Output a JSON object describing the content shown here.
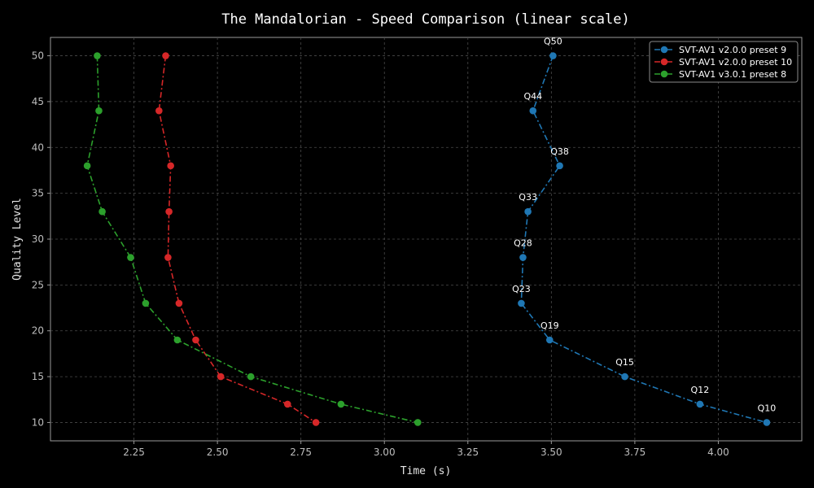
{
  "chart_data": {
    "type": "line",
    "title": "The Mandalorian - Speed Comparison (linear scale)",
    "xlabel": "Time (s)",
    "ylabel": "Quality Level",
    "xlim": [
      2.0,
      4.25
    ],
    "ylim": [
      8,
      52
    ],
    "xticks": [
      "2.25",
      "2.50",
      "2.75",
      "3.00",
      "3.25",
      "3.50",
      "3.75",
      "4.00"
    ],
    "yticks": [
      "10",
      "15",
      "20",
      "25",
      "30",
      "35",
      "40",
      "45",
      "50"
    ],
    "grid": true,
    "legend_position": "top-right",
    "series": [
      {
        "name": "SVT-AV1 v2.0.0 preset 9",
        "color": "#1f77b4",
        "points": [
          {
            "x": 3.505,
            "y": 50,
            "label": "Q50"
          },
          {
            "x": 3.445,
            "y": 44,
            "label": "Q44"
          },
          {
            "x": 3.525,
            "y": 38,
            "label": "Q38"
          },
          {
            "x": 3.43,
            "y": 33,
            "label": "Q33"
          },
          {
            "x": 3.415,
            "y": 28,
            "label": "Q28"
          },
          {
            "x": 3.41,
            "y": 23,
            "label": "Q23"
          },
          {
            "x": 3.495,
            "y": 19,
            "label": "Q19"
          },
          {
            "x": 3.72,
            "y": 15,
            "label": "Q15"
          },
          {
            "x": 3.945,
            "y": 12,
            "label": "Q12"
          },
          {
            "x": 4.145,
            "y": 10,
            "label": "Q10"
          }
        ]
      },
      {
        "name": "SVT-AV1 v2.0.0 preset 10",
        "color": "#d62728",
        "points": [
          {
            "x": 2.345,
            "y": 50
          },
          {
            "x": 2.325,
            "y": 44
          },
          {
            "x": 2.36,
            "y": 38
          },
          {
            "x": 2.355,
            "y": 33
          },
          {
            "x": 2.352,
            "y": 28
          },
          {
            "x": 2.385,
            "y": 23
          },
          {
            "x": 2.435,
            "y": 19
          },
          {
            "x": 2.51,
            "y": 15
          },
          {
            "x": 2.71,
            "y": 12
          },
          {
            "x": 2.795,
            "y": 10
          }
        ]
      },
      {
        "name": "SVT-AV1 v3.0.1 preset 8",
        "color": "#2ca02c",
        "points": [
          {
            "x": 2.14,
            "y": 50
          },
          {
            "x": 2.145,
            "y": 44
          },
          {
            "x": 2.11,
            "y": 38
          },
          {
            "x": 2.155,
            "y": 33
          },
          {
            "x": 2.24,
            "y": 28
          },
          {
            "x": 2.285,
            "y": 23
          },
          {
            "x": 2.38,
            "y": 19
          },
          {
            "x": 2.6,
            "y": 15
          },
          {
            "x": 2.87,
            "y": 12
          },
          {
            "x": 3.1,
            "y": 10
          }
        ]
      }
    ]
  }
}
